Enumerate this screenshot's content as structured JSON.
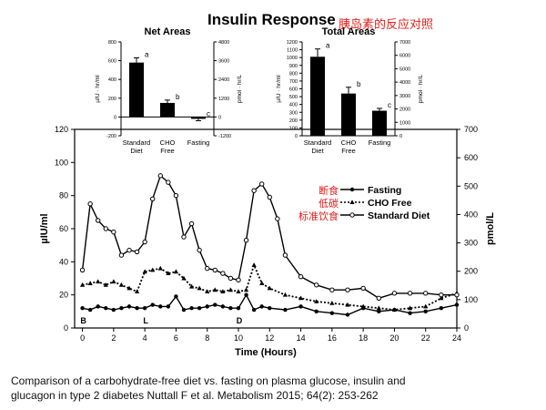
{
  "title": "Insulin Response",
  "title_cn": "胰岛素的反应对照",
  "caption": {
    "line1": "Comparison of a carbohydrate-free diet vs. fasting on plasma glucose, insulin and",
    "line2": "glucagon in type 2 diabetes Nuttall F et al. Metabolism 2015; 64(2): 253-262"
  },
  "annotations_cn": [
    "断食",
    "低碳",
    "标准饮食"
  ],
  "colors": {
    "annotation": "#e0201c",
    "bar": "#000000"
  },
  "chart_data": [
    {
      "type": "bar",
      "title": "Net Areas",
      "categories": [
        "Standard\nDiet",
        "CHO\nFree",
        "Fasting"
      ],
      "values": [
        580,
        150,
        -20
      ],
      "errors": [
        50,
        30,
        20
      ],
      "sig_letters": [
        "a",
        "b",
        "c"
      ],
      "ylabel": "µIU · hr/ml",
      "ylabel_right": "pmol · hr/L",
      "ylim": [
        -200,
        800
      ],
      "yticks": [
        -200,
        0,
        200,
        400,
        600,
        800
      ],
      "yticks_right": [
        -1200,
        0,
        1200,
        2400,
        3600,
        4800
      ]
    },
    {
      "type": "bar",
      "title": "Total Areas",
      "categories": [
        "Standard\nDiet",
        "CHO\nFree",
        "Fasting"
      ],
      "values": [
        1010,
        540,
        320
      ],
      "errors": [
        100,
        80,
        30
      ],
      "sig_letters": [
        "a",
        "b",
        "c"
      ],
      "ylabel": "µIU · hr/ml",
      "ylabel_right": "pmol · hr/L",
      "ylim": [
        0,
        1200
      ],
      "yticks": [
        0,
        100,
        200,
        300,
        400,
        500,
        600,
        700,
        800,
        900,
        1000,
        1100,
        1200
      ],
      "yticks_right": [
        0,
        1000,
        2000,
        3000,
        4000,
        5000,
        6000,
        7000
      ]
    },
    {
      "type": "line",
      "xlabel": "Time (Hours)",
      "ylabel": "µIU/ml",
      "ylabel_right": "pmol/L",
      "xlim": [
        -0.5,
        24
      ],
      "ylim": [
        0,
        120
      ],
      "xticks": [
        0,
        2,
        4,
        6,
        8,
        10,
        12,
        14,
        16,
        18,
        20,
        22,
        24
      ],
      "yticks": [
        0,
        20,
        40,
        60,
        80,
        100,
        120
      ],
      "yticks_right": [
        0,
        100,
        200,
        300,
        400,
        500,
        600,
        700
      ],
      "meal_markers": [
        {
          "label": "B",
          "x": 0
        },
        {
          "label": "L",
          "x": 4
        },
        {
          "label": "D",
          "x": 10
        }
      ],
      "legend": {
        "position": "top-right"
      },
      "series": [
        {
          "name": "Fasting",
          "style": "solid-filled-circle",
          "x": [
            0,
            0.5,
            1,
            1.5,
            2,
            2.5,
            3,
            3.5,
            4,
            4.5,
            5,
            5.5,
            6,
            6.5,
            7,
            7.5,
            8,
            8.5,
            9,
            9.5,
            10,
            10.5,
            11,
            11.5,
            12,
            13,
            14,
            15,
            16,
            17,
            18,
            19,
            20,
            21,
            22,
            23,
            24
          ],
          "y": [
            12,
            11,
            13,
            12,
            11,
            12,
            13,
            12,
            12,
            14,
            13,
            13,
            19,
            11,
            12,
            12,
            13,
            14,
            13,
            12,
            12,
            20,
            11,
            13,
            12,
            11,
            13,
            10,
            9,
            8,
            12,
            10,
            11,
            9,
            10,
            12,
            14
          ]
        },
        {
          "name": "CHO Free",
          "style": "dotted-filled-triangle",
          "x": [
            0,
            0.5,
            1,
            1.5,
            2,
            2.5,
            3,
            3.5,
            4,
            4.5,
            5,
            5.5,
            6,
            6.5,
            7,
            7.5,
            8,
            8.5,
            9,
            9.5,
            10,
            10.5,
            11,
            11.5,
            12,
            13,
            14,
            15,
            16,
            17,
            18,
            19,
            20,
            21,
            22,
            23,
            24
          ],
          "y": [
            26,
            27,
            28,
            26,
            28,
            26,
            24,
            22,
            34,
            35,
            36,
            33,
            34,
            30,
            25,
            24,
            22,
            23,
            22,
            23,
            22,
            23,
            38,
            27,
            24,
            20,
            18,
            16,
            15,
            14,
            13,
            12,
            11,
            12,
            13,
            18,
            21
          ]
        },
        {
          "name": "Standard Diet",
          "style": "solid-open-circle",
          "x": [
            0,
            0.5,
            1,
            1.5,
            2,
            2.5,
            3,
            3.5,
            4,
            4.5,
            5,
            5.5,
            6,
            6.5,
            7,
            7.5,
            8,
            8.5,
            9,
            9.5,
            10,
            10.5,
            11,
            11.5,
            12,
            12.5,
            13,
            14,
            15,
            16,
            17,
            18,
            19,
            20,
            21,
            22,
            23,
            24
          ],
          "y": [
            35,
            75,
            65,
            60,
            58,
            44,
            47,
            46,
            52,
            78,
            92,
            88,
            80,
            55,
            63,
            47,
            36,
            35,
            33,
            30,
            29,
            53,
            83,
            87,
            79,
            66,
            44,
            31,
            26,
            23,
            23,
            24,
            18,
            21,
            21,
            21,
            20,
            20
          ]
        }
      ]
    }
  ]
}
